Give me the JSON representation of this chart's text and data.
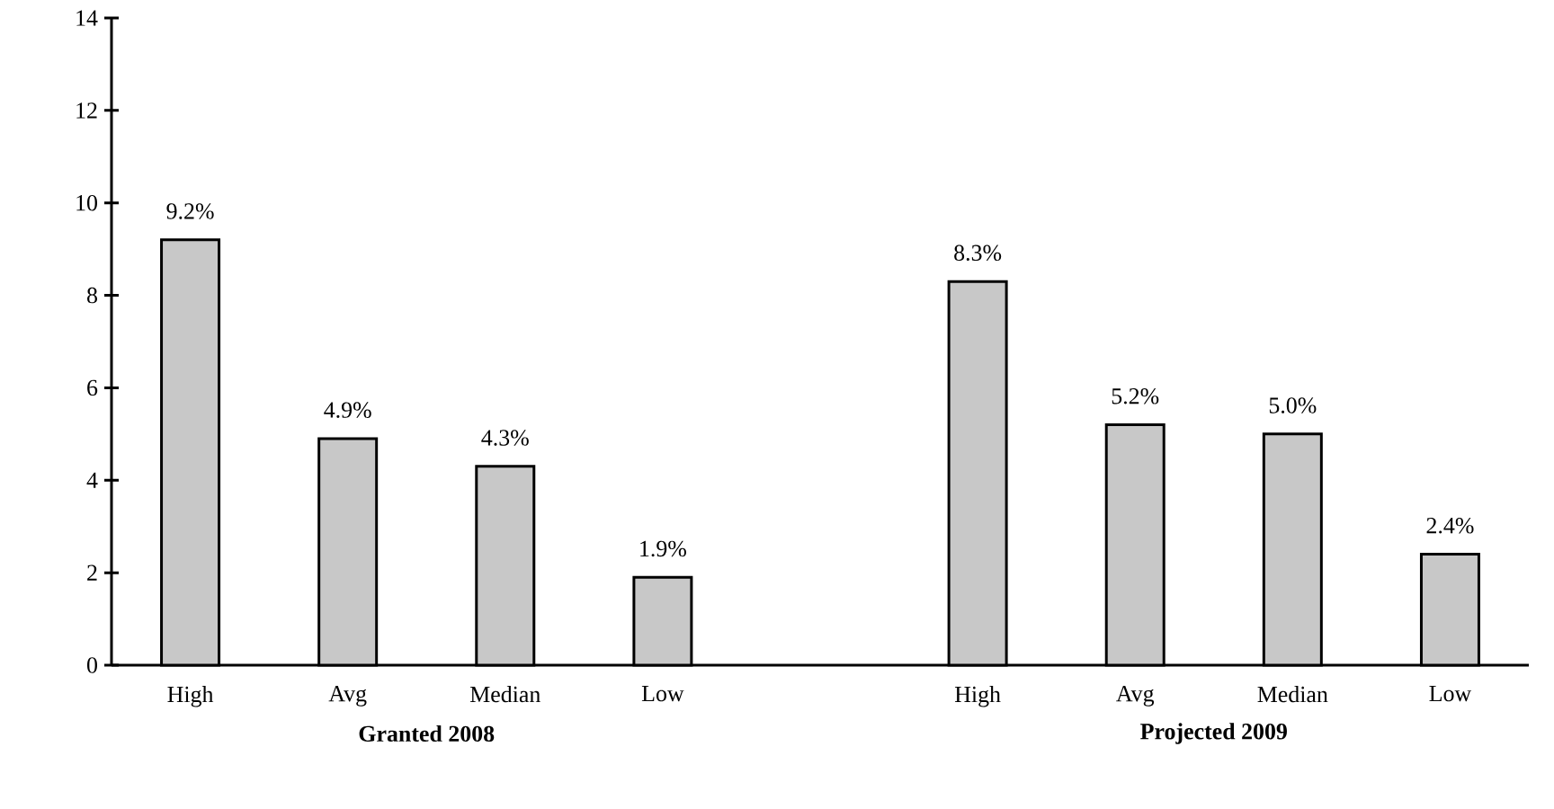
{
  "chart_data": {
    "type": "bar",
    "categories": [
      "High",
      "Avg",
      "Median",
      "Low",
      null,
      "High",
      "Avg",
      "Median",
      "Low"
    ],
    "values": [
      9.2,
      4.9,
      4.3,
      1.9,
      null,
      8.3,
      5.2,
      5.0,
      2.4
    ],
    "value_labels": [
      "9.2%",
      "4.9%",
      "4.3%",
      "1.9%",
      null,
      "8.3%",
      "5.2%",
      "5.0%",
      "2.4%"
    ],
    "color": "#c8c8c8",
    "ylim": [
      0,
      14
    ],
    "yticks": [
      0,
      2,
      4,
      6,
      8,
      10,
      12,
      14
    ],
    "annotations": [
      "Granted 2008",
      "Projected 2009"
    ]
  }
}
